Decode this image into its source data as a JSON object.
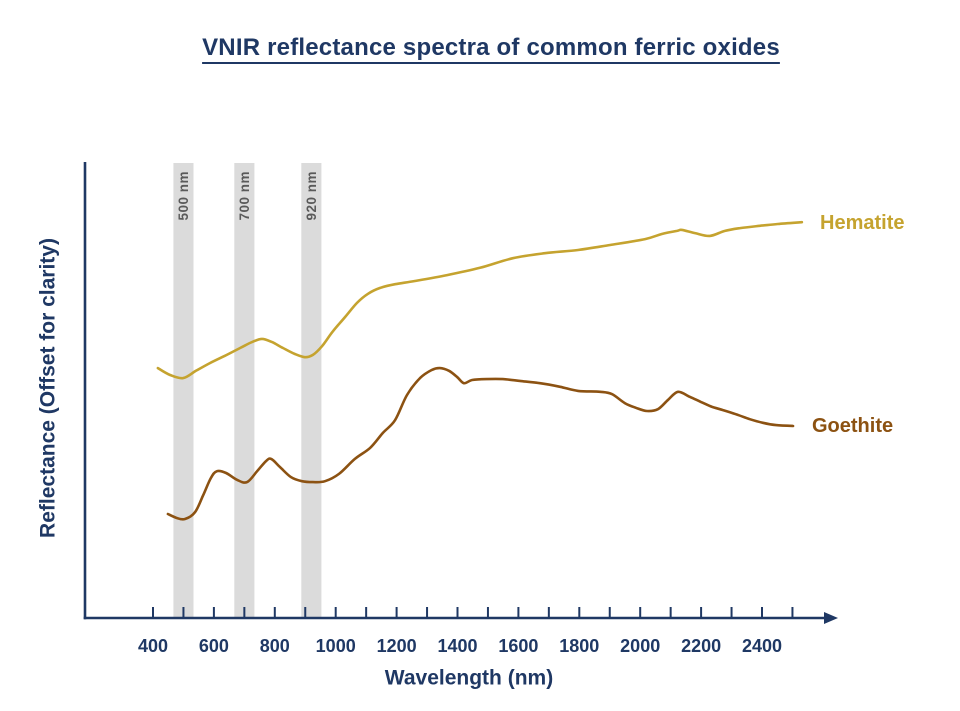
{
  "title": "VNIR reflectance spectra of common ferric oxides",
  "colors": {
    "navy": "#1F3864",
    "band_fill": "#DBDBDB",
    "band_text": "#5A5A5A",
    "background": "#FFFFFF",
    "hematite": "#C5A32F",
    "goethite": "#8C5212"
  },
  "chart_data": {
    "type": "line",
    "title": "VNIR reflectance spectra of common ferric oxides",
    "xlabel": "Wavelength (nm)",
    "ylabel": "Reflectance (Offset for clarity)",
    "x_unit": "nm",
    "x_range": [
      400,
      2500
    ],
    "x_major_tick_labels": [
      400,
      600,
      800,
      1000,
      1200,
      1400,
      1600,
      1800,
      2000,
      2200,
      2400
    ],
    "x_minor_tick_step": 100,
    "y_axis": "arbitrary units, spectra offset for clarity (no ticks)",
    "grid": false,
    "legend_position": "inline-right-of-curves",
    "bands": [
      {
        "label": "500 nm",
        "center_nm": 500,
        "width_nm": 66
      },
      {
        "label": "700 nm",
        "center_nm": 700,
        "width_nm": 66
      },
      {
        "label": "920 nm",
        "center_nm": 920,
        "width_nm": 66
      }
    ],
    "series": [
      {
        "name": "Hematite",
        "color": "#C5A32F",
        "points": [
          [
            416,
            54.8
          ],
          [
            456,
            53.3
          ],
          [
            499,
            52.6
          ],
          [
            541,
            54.2
          ],
          [
            587,
            55.9
          ],
          [
            636,
            57.5
          ],
          [
            686,
            59.2
          ],
          [
            725,
            60.5
          ],
          [
            758,
            61.2
          ],
          [
            791,
            60.5
          ],
          [
            827,
            59.2
          ],
          [
            866,
            57.9
          ],
          [
            899,
            57.2
          ],
          [
            925,
            57.7
          ],
          [
            955,
            59.6
          ],
          [
            991,
            62.9
          ],
          [
            1031,
            66.0
          ],
          [
            1070,
            69.1
          ],
          [
            1106,
            71.1
          ],
          [
            1146,
            72.4
          ],
          [
            1195,
            73.2
          ],
          [
            1260,
            73.9
          ],
          [
            1366,
            75.2
          ],
          [
            1474,
            76.8
          ],
          [
            1582,
            78.9
          ],
          [
            1687,
            80.0
          ],
          [
            1796,
            80.7
          ],
          [
            1901,
            81.8
          ],
          [
            2016,
            83.1
          ],
          [
            2071,
            84.2
          ],
          [
            2121,
            84.9
          ],
          [
            2137,
            85.1
          ],
          [
            2180,
            84.4
          ],
          [
            2229,
            83.8
          ],
          [
            2278,
            84.9
          ],
          [
            2328,
            85.5
          ],
          [
            2393,
            86.0
          ],
          [
            2452,
            86.4
          ],
          [
            2531,
            86.8
          ]
        ]
      },
      {
        "name": "Goethite",
        "color": "#8C5212",
        "points": [
          [
            449,
            22.8
          ],
          [
            479,
            21.9
          ],
          [
            505,
            21.7
          ],
          [
            538,
            23.2
          ],
          [
            564,
            26.8
          ],
          [
            590,
            30.7
          ],
          [
            610,
            32.2
          ],
          [
            640,
            31.8
          ],
          [
            676,
            30.3
          ],
          [
            709,
            29.8
          ],
          [
            742,
            32.2
          ],
          [
            771,
            34.4
          ],
          [
            788,
            34.9
          ],
          [
            817,
            33.1
          ],
          [
            853,
            30.9
          ],
          [
            889,
            30.0
          ],
          [
            925,
            29.8
          ],
          [
            965,
            30.0
          ],
          [
            1011,
            31.6
          ],
          [
            1063,
            34.9
          ],
          [
            1113,
            37.3
          ],
          [
            1155,
            40.6
          ],
          [
            1195,
            43.4
          ],
          [
            1234,
            48.9
          ],
          [
            1277,
            52.6
          ],
          [
            1316,
            54.4
          ],
          [
            1342,
            54.8
          ],
          [
            1372,
            54.2
          ],
          [
            1398,
            52.9
          ],
          [
            1421,
            51.5
          ],
          [
            1448,
            52.2
          ],
          [
            1497,
            52.4
          ],
          [
            1549,
            52.4
          ],
          [
            1605,
            52.0
          ],
          [
            1671,
            51.5
          ],
          [
            1737,
            50.7
          ],
          [
            1796,
            49.8
          ],
          [
            1868,
            49.6
          ],
          [
            1907,
            49.1
          ],
          [
            1950,
            47.1
          ],
          [
            1986,
            46.1
          ],
          [
            2022,
            45.4
          ],
          [
            2058,
            45.8
          ],
          [
            2091,
            47.8
          ],
          [
            2124,
            49.6
          ],
          [
            2163,
            48.5
          ],
          [
            2199,
            47.4
          ],
          [
            2236,
            46.3
          ],
          [
            2272,
            45.6
          ],
          [
            2314,
            44.7
          ],
          [
            2360,
            43.6
          ],
          [
            2403,
            42.8
          ],
          [
            2446,
            42.3
          ],
          [
            2502,
            42.1
          ]
        ]
      }
    ]
  }
}
